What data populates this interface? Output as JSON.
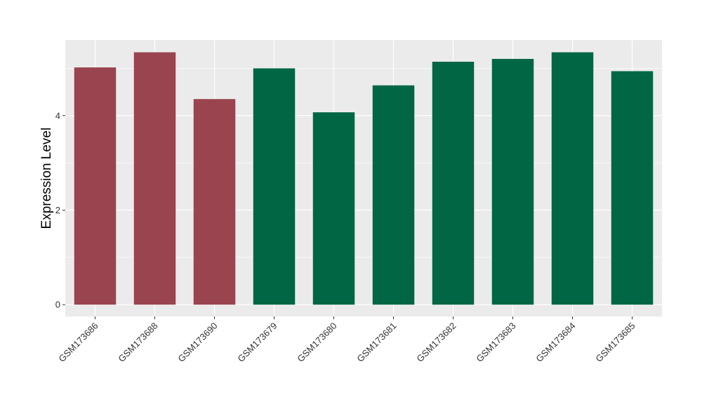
{
  "chart_data": {
    "type": "bar",
    "ylabel": "Expression Level",
    "xlabel": "",
    "title": "",
    "categories": [
      "GSM173686",
      "GSM173688",
      "GSM173690",
      "GSM173679",
      "GSM173680",
      "GSM173681",
      "GSM173682",
      "GSM173683",
      "GSM173684",
      "GSM173685"
    ],
    "values": [
      5.02,
      5.34,
      4.35,
      5.0,
      4.07,
      4.64,
      5.14,
      5.2,
      5.34,
      4.94
    ],
    "bar_colors": [
      "#99444f",
      "#99444f",
      "#99444f",
      "#006644",
      "#006644",
      "#006644",
      "#006644",
      "#006644",
      "#006644",
      "#006644"
    ],
    "ylim": [
      -0.25,
      5.6
    ],
    "yticks": [
      0,
      2,
      4
    ],
    "yticks_labels": [
      "0",
      "2",
      "4"
    ],
    "grid": true,
    "legend": "none",
    "panel_background": "#ebebeb",
    "gridline_color": "#ffffff"
  }
}
